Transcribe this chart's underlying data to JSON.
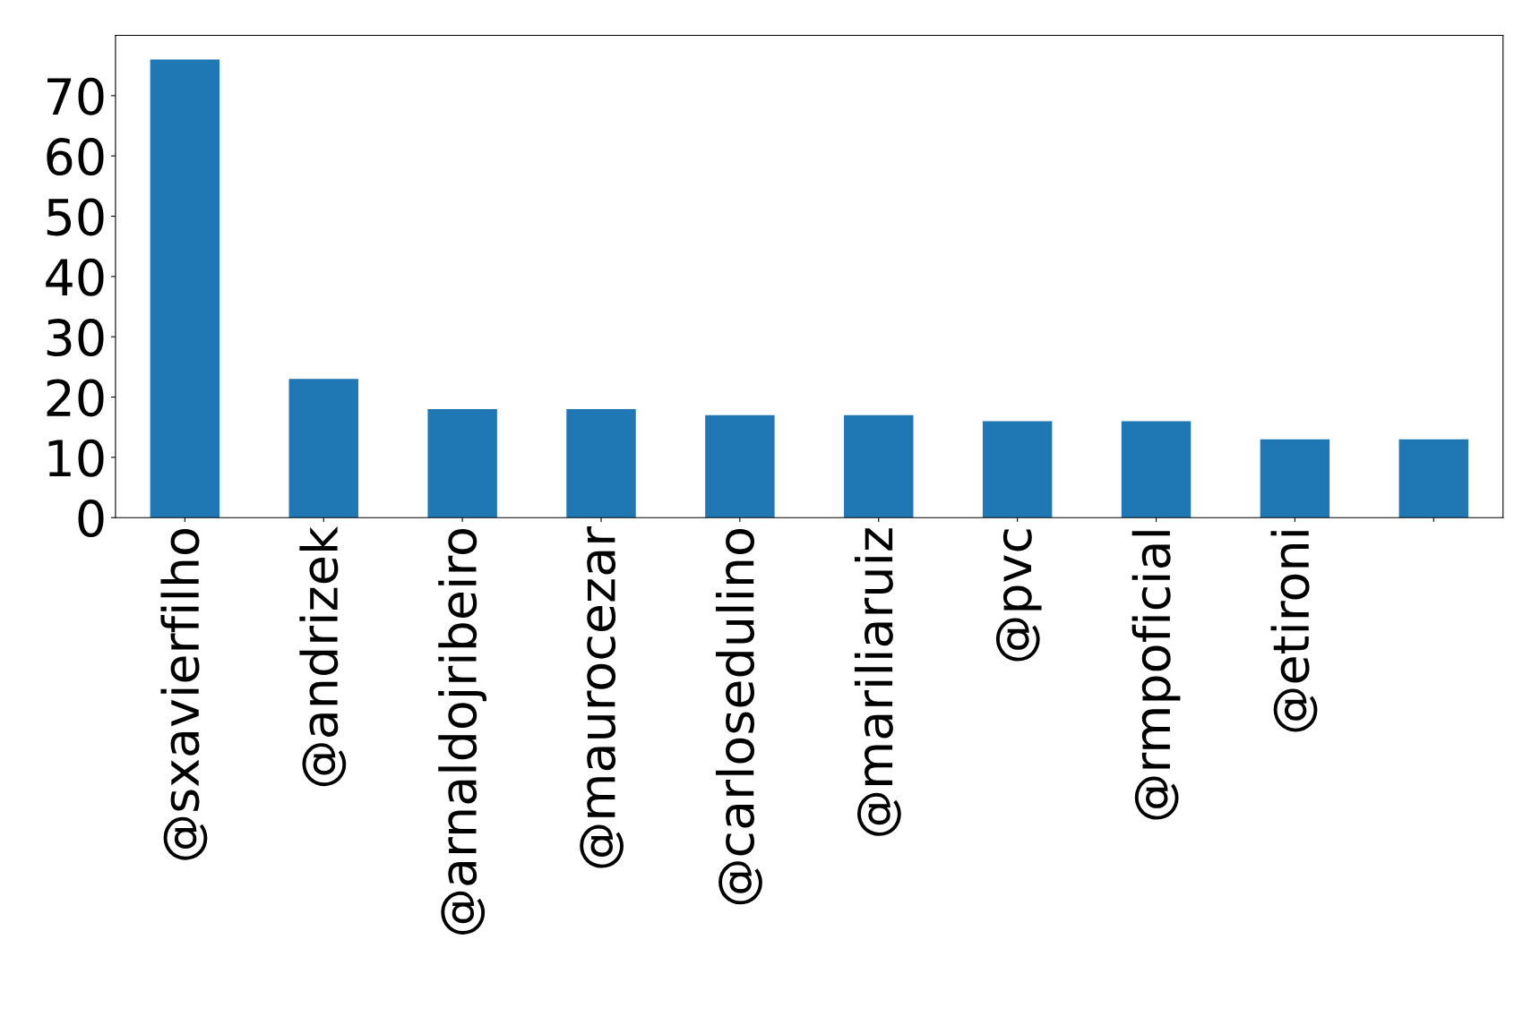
{
  "chart_data": {
    "type": "bar",
    "categories": [
      "@sxavierfilho",
      "@andrizek",
      "@arnaldojribeiro",
      "@maurocezar",
      "@carlosedulino",
      "@mariliaruiz",
      "@pvc",
      "@rmpoficial",
      "@etironi",
      null
    ],
    "values": [
      76,
      23,
      18,
      18,
      17,
      17,
      16,
      16,
      13,
      13
    ],
    "color": "#1f77b4",
    "ylim": [
      0,
      80
    ],
    "yticks": [
      0,
      10,
      20,
      30,
      40,
      50,
      60,
      70
    ],
    "grid": false,
    "legend": false
  }
}
